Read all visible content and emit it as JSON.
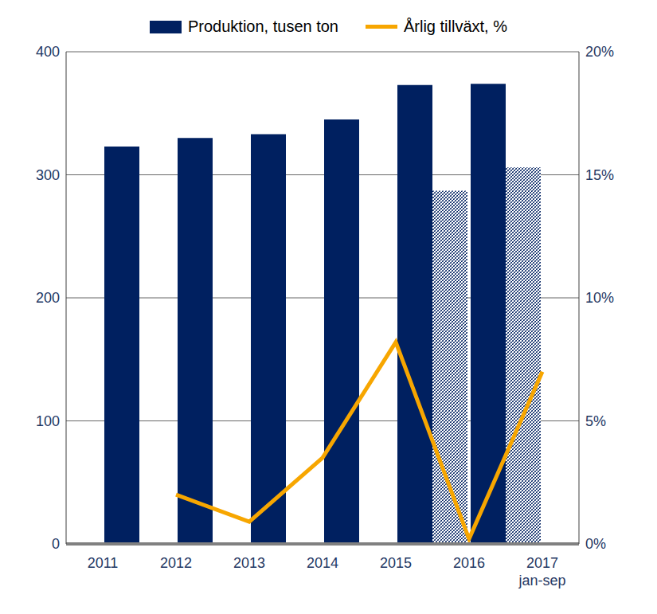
{
  "chart_data": {
    "type": "bar",
    "categories": [
      "2011",
      "2012",
      "2013",
      "2014",
      "2015",
      "2016",
      "2017 jan-sep"
    ],
    "series": [
      {
        "name": "Produktion, tusen ton",
        "type": "bar",
        "color": "#002060",
        "values": [
          323,
          330,
          333,
          345,
          373,
          374,
          null
        ]
      },
      {
        "name": "Årlig tillväxt, %",
        "type": "line",
        "axis": "y2",
        "color": "#F7A600",
        "values": [
          null,
          2.0,
          0.9,
          3.5,
          8.2,
          0.2,
          7.0
        ]
      }
    ],
    "jan_sep": {
      "color": "#002060",
      "values": [
        null,
        null,
        null,
        null,
        null,
        287,
        306
      ]
    },
    "ylim": [
      0,
      400
    ],
    "yticks": [
      0,
      100,
      200,
      300,
      400
    ],
    "y2lim": [
      0,
      20
    ],
    "y2ticks": [
      {
        "value": 0,
        "label": "0%"
      },
      {
        "value": 5,
        "label": "5%"
      },
      {
        "value": 10,
        "label": "10%"
      },
      {
        "value": 15,
        "label": "15%"
      },
      {
        "value": 20,
        "label": "20%"
      }
    ],
    "grid": true,
    "legend": "top"
  }
}
